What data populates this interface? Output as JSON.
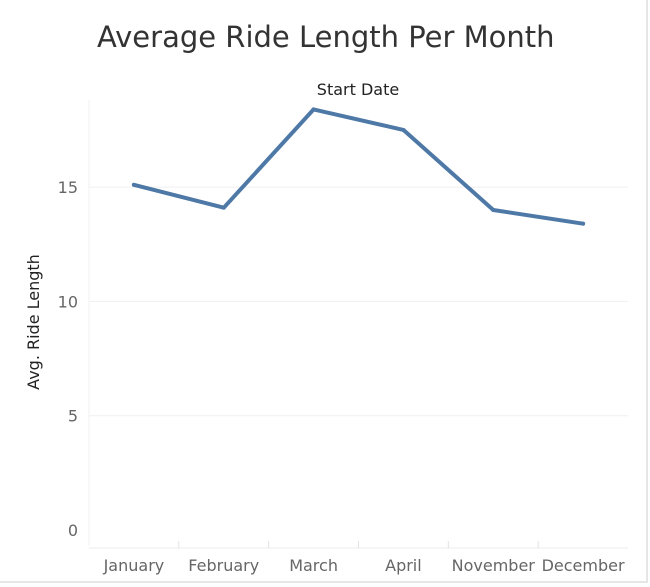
{
  "chart_data": {
    "type": "line",
    "title": "Average Ride Length Per Month",
    "xlabel": "Start Date",
    "ylabel": "Avg. Ride Length",
    "categories": [
      "January",
      "February",
      "March",
      "April",
      "November",
      "December"
    ],
    "series": [
      {
        "values": [
          15.1,
          14.1,
          18.4,
          17.5,
          14.0,
          13.4
        ]
      }
    ],
    "ylim": [
      0,
      19
    ],
    "yticks": [
      0,
      5,
      10,
      15
    ],
    "grid": true,
    "line_color": "#4e79a7"
  }
}
